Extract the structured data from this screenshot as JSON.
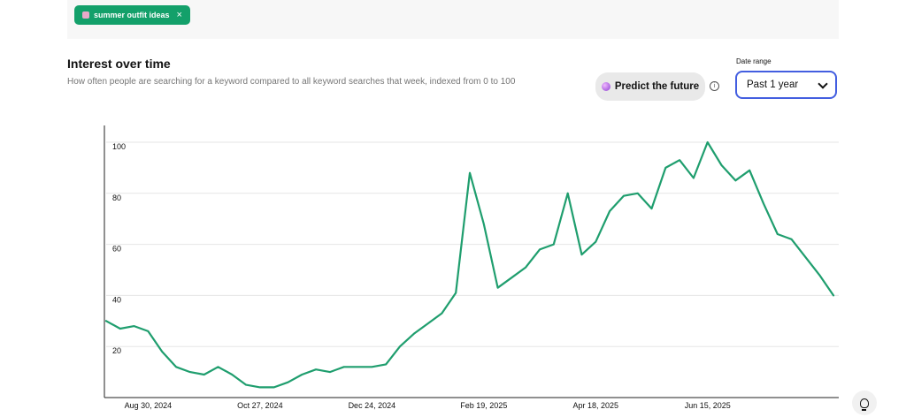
{
  "filter_chip": {
    "label": "summer outfit ideas",
    "close_glyph": "×",
    "icon": "dress-emoji-icon",
    "color": "#13a06a"
  },
  "section": {
    "title": "Interest over time",
    "subtitle": "How often people are searching for a keyword compared to all keyword searches that week, indexed from 0 to 100"
  },
  "predict_button": {
    "label": "Predict the future",
    "icon": "crystal-ball-icon"
  },
  "date_range": {
    "label": "Date range",
    "selected": "Past 1 year",
    "accent": "#435ee0"
  },
  "chart_data": {
    "type": "line",
    "title": "",
    "xlabel": "",
    "ylabel": "",
    "ylim": [
      0,
      100
    ],
    "yticks": [
      20,
      40,
      60,
      80,
      100
    ],
    "grid": true,
    "line_color": "#1f9e6e",
    "x_tick_labels": [
      "Aug 30, 2024",
      "Oct 27, 2024",
      "Dec 24, 2024",
      "Feb 19, 2025",
      "Apr 18, 2025",
      "Jun 15, 2025"
    ],
    "x_tick_indices": [
      3,
      11,
      19,
      27,
      35,
      43
    ],
    "values": [
      30,
      27,
      28,
      26,
      18,
      12,
      10,
      9,
      12,
      9,
      5,
      4,
      4,
      6,
      9,
      11,
      10,
      12,
      12,
      12,
      13,
      20,
      25,
      29,
      33,
      41,
      88,
      68,
      43,
      47,
      51,
      58,
      60,
      80,
      56,
      61,
      73,
      79,
      80,
      74,
      90,
      93,
      86,
      100,
      91,
      85,
      89,
      76,
      64,
      62,
      55,
      48,
      40
    ]
  },
  "assistant_button": {
    "icon": "lightbulb-icon"
  }
}
